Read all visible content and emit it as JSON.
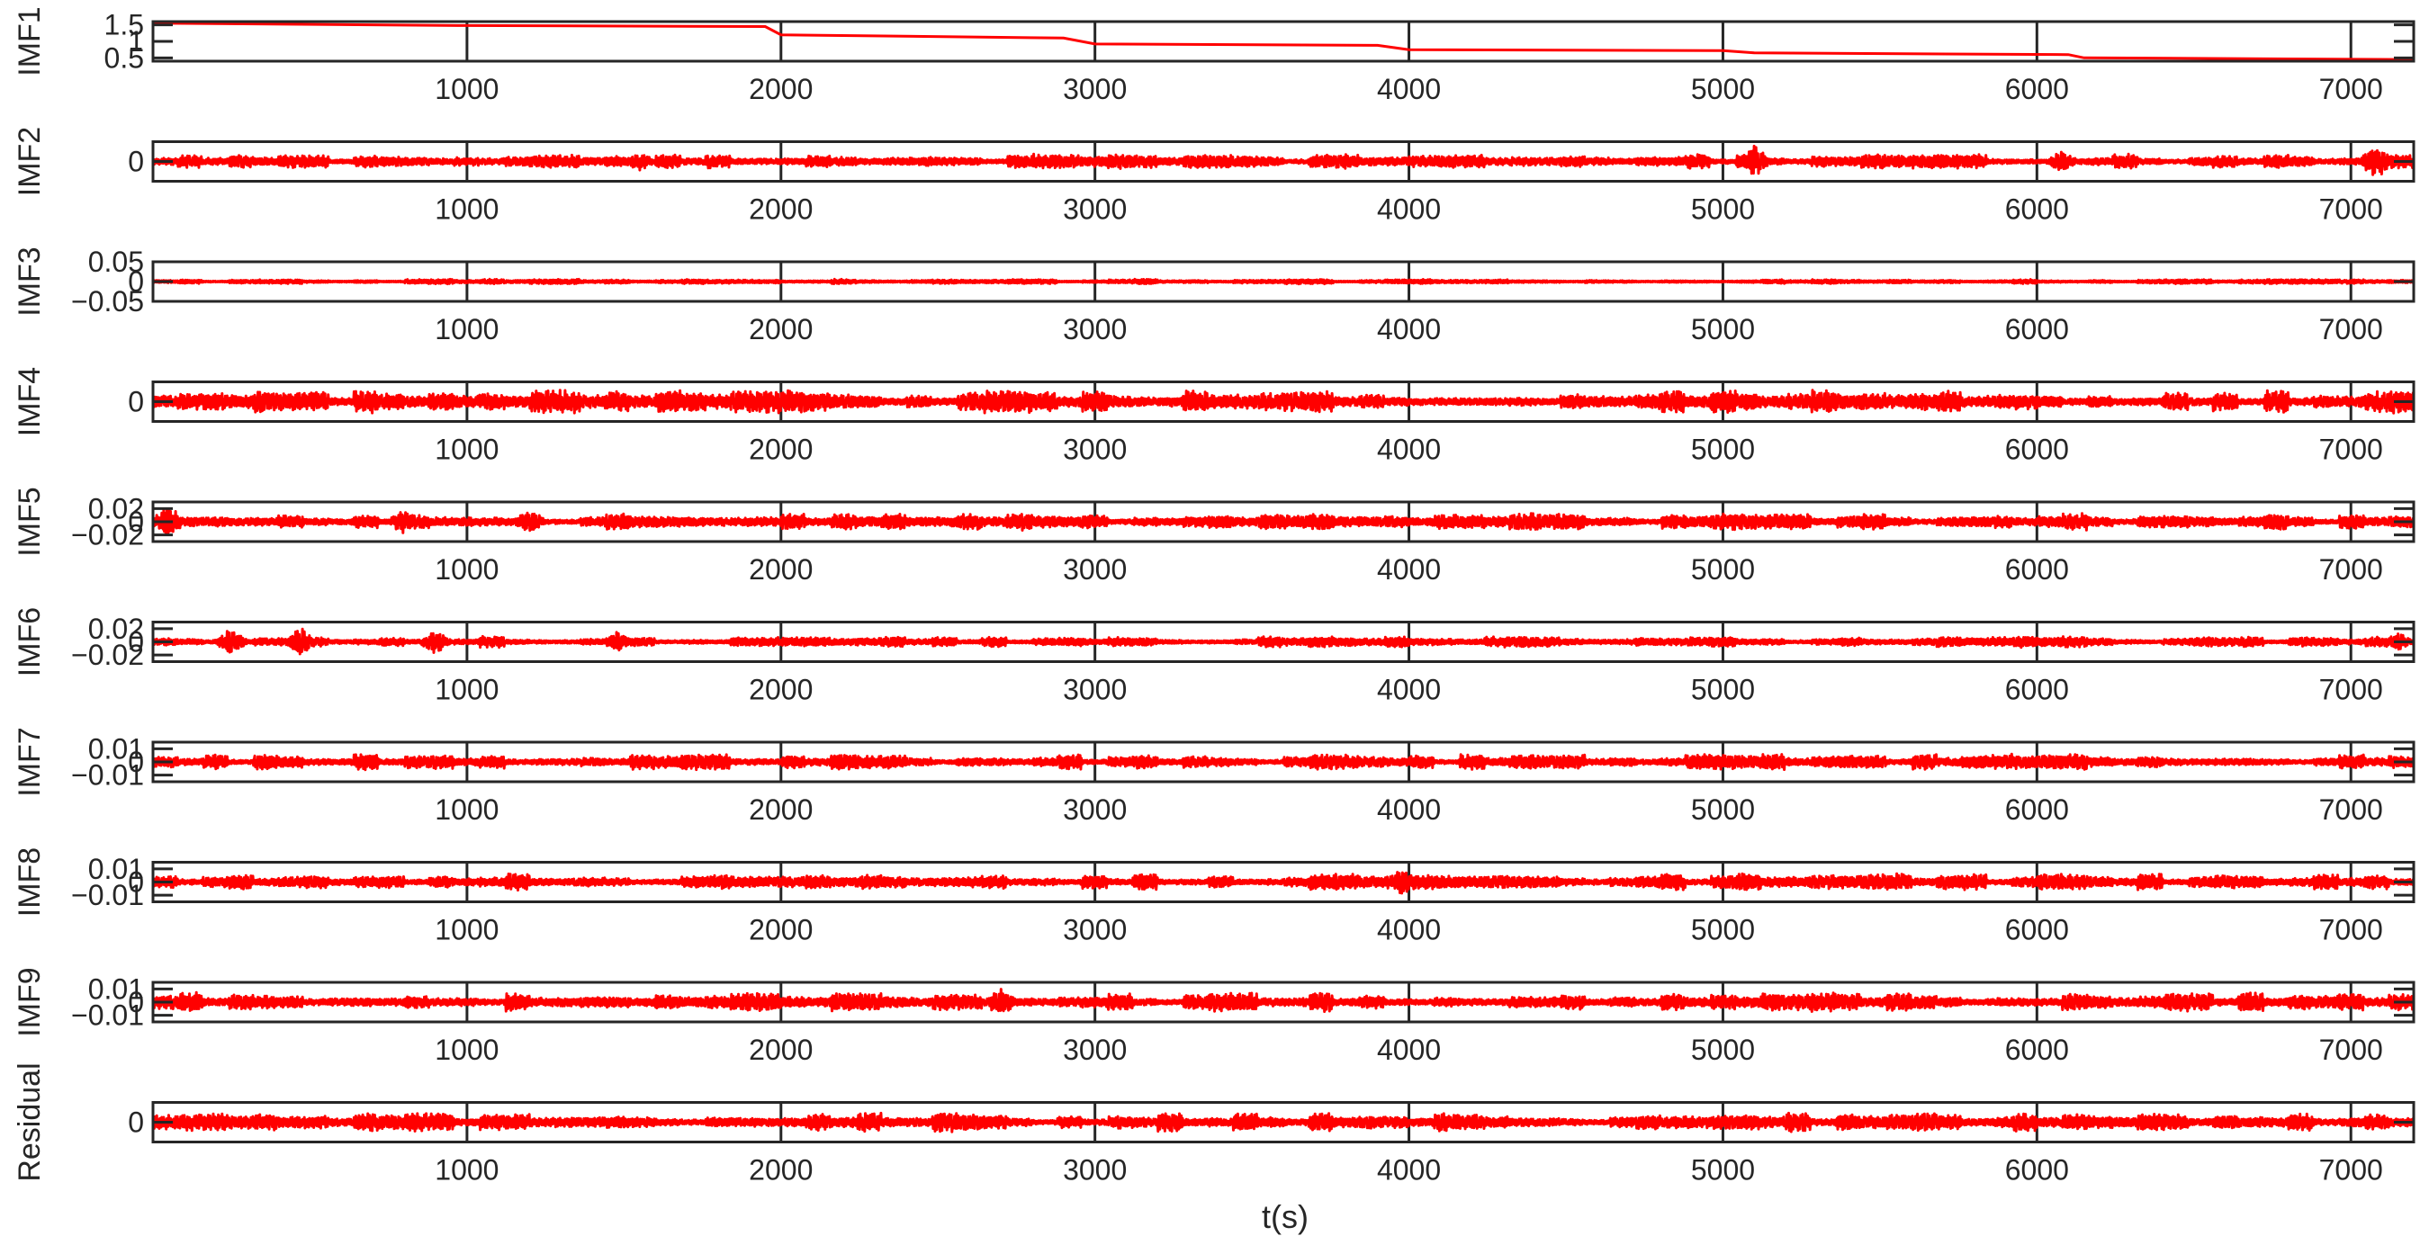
{
  "chart_data": {
    "type": "line",
    "layout": "stacked-subplots",
    "x_range": [
      0,
      7200
    ],
    "x_ticks": [
      1000,
      2000,
      3000,
      4000,
      5000,
      6000,
      7000
    ],
    "x_tick_labels": [
      "1000",
      "2000",
      "3000",
      "4000",
      "5000",
      "6000",
      "7000"
    ],
    "xlabel": "t(s)",
    "grid": "vertical",
    "line_color": "#ff0000",
    "axes_color": "#262626",
    "panels": [
      {
        "ylabel": "IMF1",
        "ylim": [
          0.4,
          1.6
        ],
        "y_ticks": [
          1.5,
          1,
          0.5
        ],
        "y_tick_labels": [
          "1.5",
          "1",
          "0.5"
        ],
        "kind": "trend",
        "trend": [
          [
            0,
            1.55
          ],
          [
            1000,
            1.48
          ],
          [
            1950,
            1.45
          ],
          [
            2000,
            1.2
          ],
          [
            2900,
            1.1
          ],
          [
            3000,
            0.92
          ],
          [
            3900,
            0.88
          ],
          [
            4000,
            0.75
          ],
          [
            5000,
            0.72
          ],
          [
            5100,
            0.65
          ],
          [
            6100,
            0.6
          ],
          [
            6150,
            0.5
          ],
          [
            7200,
            0.45
          ]
        ]
      },
      {
        "ylabel": "IMF2",
        "ylim": [
          -1,
          1
        ],
        "y_ticks": [
          0
        ],
        "y_tick_labels": [
          "0"
        ],
        "kind": "oscillation",
        "amplitude": 0.35,
        "bursts": [
          [
            5100,
            0.85
          ],
          [
            7080,
            1.0
          ],
          [
            6080,
            0.55
          ],
          [
            1550,
            0.5
          ],
          [
            3800,
            0.4
          ]
        ]
      },
      {
        "ylabel": "IMF3",
        "ylim": [
          -0.05,
          0.05
        ],
        "y_ticks": [
          0.05,
          0,
          -0.05
        ],
        "y_tick_labels": [
          "0.05",
          "0",
          "−0.05"
        ],
        "kind": "oscillation",
        "amplitude": 0.006
      },
      {
        "ylabel": "IMF4",
        "ylim": [
          -1,
          1
        ],
        "y_ticks": [
          0
        ],
        "y_tick_labels": [
          "0"
        ],
        "kind": "oscillation",
        "amplitude": 0.55
      },
      {
        "ylabel": "IMF5",
        "ylim": [
          -0.03,
          0.03
        ],
        "y_ticks": [
          0.02,
          0,
          -0.02
        ],
        "y_tick_labels": [
          "0.02",
          "0",
          "−0.02"
        ],
        "kind": "oscillation",
        "amplitude": 0.012,
        "bursts": [
          [
            50,
            0.028
          ],
          [
            800,
            0.02
          ],
          [
            1200,
            0.02
          ]
        ]
      },
      {
        "ylabel": "IMF6",
        "ylim": [
          -0.03,
          0.03
        ],
        "y_ticks": [
          0.02,
          0,
          -0.02
        ],
        "y_tick_labels": [
          "0.02",
          "0",
          "−0.02"
        ],
        "kind": "oscillation",
        "amplitude": 0.008,
        "bursts": [
          [
            250,
            0.022
          ],
          [
            470,
            0.022
          ],
          [
            900,
            0.018
          ],
          [
            1480,
            0.016
          ],
          [
            7150,
            0.014
          ]
        ]
      },
      {
        "ylabel": "IMF7",
        "ylim": [
          -0.015,
          0.015
        ],
        "y_ticks": [
          0.01,
          0,
          -0.01
        ],
        "y_tick_labels": [
          "0.01",
          "0",
          "−0.01"
        ],
        "kind": "oscillation",
        "amplitude": 0.006
      },
      {
        "ylabel": "IMF8",
        "ylim": [
          -0.015,
          0.015
        ],
        "y_ticks": [
          0.01,
          0,
          -0.01
        ],
        "y_tick_labels": [
          "0.01",
          "0",
          "−0.01"
        ],
        "kind": "oscillation",
        "amplitude": 0.006,
        "bursts": [
          [
            3980,
            0.011
          ]
        ]
      },
      {
        "ylabel": "IMF9",
        "ylim": [
          -0.015,
          0.015
        ],
        "y_ticks": [
          0.01,
          0,
          -0.01
        ],
        "y_tick_labels": [
          "0.01",
          "0",
          "−0.01"
        ],
        "kind": "oscillation",
        "amplitude": 0.007,
        "bursts": [
          [
            2700,
            0.012
          ]
        ]
      },
      {
        "ylabel": "Residual",
        "ylim": [
          -1,
          1
        ],
        "y_ticks": [
          0
        ],
        "y_tick_labels": [
          "0"
        ],
        "kind": "oscillation",
        "amplitude": 0.45
      }
    ]
  }
}
